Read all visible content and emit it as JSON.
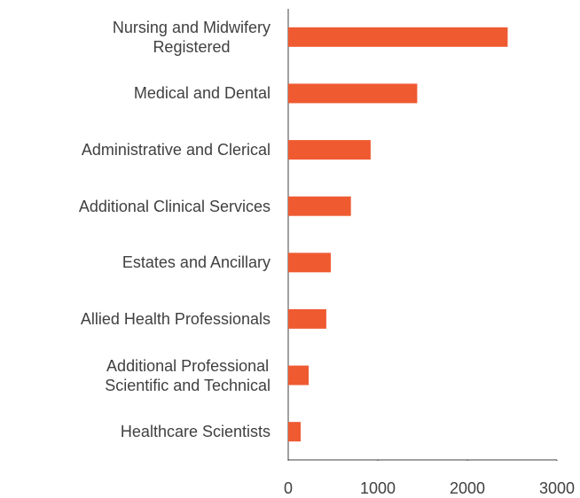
{
  "chart_data": {
    "type": "bar",
    "orientation": "horizontal",
    "categories": [
      "Nursing and Midwifery\nRegistered",
      "Medical and Dental",
      "Administrative and Clerical",
      "Additional Clinical Services",
      "Estates and Ancillary",
      "Allied Health Professionals",
      "Additional Professional\nScientific and Technical",
      "Healthcare Scientists"
    ],
    "values": [
      2450,
      1440,
      920,
      700,
      475,
      425,
      228,
      139
    ],
    "color": "#ef5a31",
    "xlim": [
      0,
      3000
    ],
    "xticks": [
      0,
      1000,
      2000,
      3000
    ],
    "grid": false
  }
}
